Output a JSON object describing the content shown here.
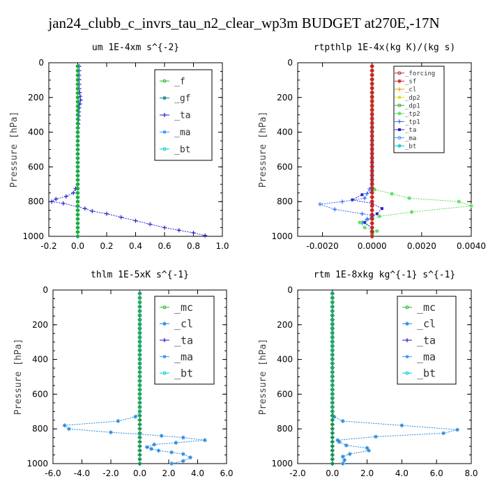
{
  "figure_title": "jan24_clubb_c_invrs_tau_n2_clear_wp3m  BUDGET at270E,-17N",
  "chart_data": [
    {
      "type": "line",
      "title": "um  1E-4xm s^{-2}",
      "xlabel": "",
      "ylabel": "Pressure [hPa]",
      "xlim": [
        -0.2,
        1.0
      ],
      "ylim": [
        1000,
        0
      ],
      "xticks": [
        "-0.2",
        "0.0",
        "0.2",
        "0.4",
        "0.6",
        "0.8",
        "1.0"
      ],
      "yticks": [
        "0",
        "200",
        "400",
        "600",
        "800",
        "1000"
      ],
      "legend_position": "top-right",
      "series": [
        {
          "name": "_f",
          "color": "#22bb22",
          "points": [
            [
              0,
              20
            ],
            [
              0,
              100
            ],
            [
              0,
              200
            ],
            [
              0,
              300
            ],
            [
              0,
              400
            ],
            [
              0,
              500
            ],
            [
              0,
              600
            ],
            [
              0,
              700
            ],
            [
              0,
              800
            ],
            [
              0,
              850
            ],
            [
              0,
              900
            ],
            [
              0,
              950
            ],
            [
              0,
              1000
            ]
          ]
        },
        {
          "name": "_gf",
          "color": "#118888",
          "points": [
            [
              0,
              20
            ],
            [
              0,
              100
            ],
            [
              0,
              200
            ],
            [
              0,
              300
            ],
            [
              0,
              400
            ],
            [
              0,
              500
            ],
            [
              0,
              600
            ],
            [
              0,
              700
            ],
            [
              0,
              800
            ],
            [
              0,
              900
            ],
            [
              0,
              1000
            ]
          ]
        },
        {
          "name": "_ta",
          "color": "#2222cc",
          "points": [
            [
              0.01,
              20
            ],
            [
              0.01,
              150
            ],
            [
              0.02,
              215
            ],
            [
              0.01,
              260
            ],
            [
              0.0,
              400
            ],
            [
              0.0,
              700
            ],
            [
              -0.03,
              750
            ],
            [
              -0.08,
              770
            ],
            [
              -0.15,
              785
            ],
            [
              -0.18,
              800
            ],
            [
              -0.1,
              810
            ],
            [
              0.0,
              830
            ],
            [
              0.05,
              840
            ],
            [
              0.1,
              855
            ],
            [
              0.2,
              870
            ],
            [
              0.3,
              890
            ],
            [
              0.4,
              910
            ],
            [
              0.5,
              930
            ],
            [
              0.6,
              950
            ],
            [
              0.7,
              965
            ],
            [
              0.8,
              980
            ],
            [
              0.88,
              995
            ]
          ]
        },
        {
          "name": "_ma",
          "color": "#3399ff",
          "points": [
            [
              0,
              20
            ],
            [
              0,
              200
            ],
            [
              0,
              400
            ],
            [
              0,
              600
            ],
            [
              0,
              800
            ],
            [
              0,
              1000
            ]
          ]
        },
        {
          "name": "_bt",
          "color": "#00cccc",
          "points": [
            [
              0,
              20
            ],
            [
              0,
              200
            ],
            [
              0,
              400
            ],
            [
              0,
              600
            ],
            [
              0,
              800
            ],
            [
              0,
              1000
            ]
          ]
        }
      ]
    },
    {
      "type": "line",
      "title": "rtpthlp  1E-4x(kg K)/(kg s)",
      "xlabel": "",
      "ylabel": "Pressure [hPa]",
      "xlim": [
        -0.003,
        0.004
      ],
      "ylim": [
        1000,
        0
      ],
      "xticks": [
        "-0.0020",
        "0.0000",
        "0.0020",
        "0.0040"
      ],
      "yticks": [
        "0",
        "200",
        "400",
        "600",
        "800",
        "1000"
      ],
      "legend_position": "top-right",
      "series": [
        {
          "name": "_forcing",
          "color": "#cc2222",
          "points": [
            [
              0,
              20
            ],
            [
              0,
              200
            ],
            [
              0,
              400
            ],
            [
              0,
              600
            ],
            [
              0,
              800
            ],
            [
              0,
              1000
            ]
          ]
        },
        {
          "name": "_sf",
          "color": "#cc2222",
          "points": [
            [
              0,
              20
            ],
            [
              0,
              1000
            ]
          ]
        },
        {
          "name": "_cl",
          "color": "#ff9900",
          "points": [
            [
              0,
              20
            ],
            [
              0,
              1000
            ]
          ]
        },
        {
          "name": "_dp2",
          "color": "#dddd22",
          "points": [
            [
              0,
              20
            ],
            [
              0,
              1000
            ]
          ]
        },
        {
          "name": "_dp1",
          "color": "#33aa33",
          "points": [
            [
              0,
              20
            ],
            [
              0,
              1000
            ]
          ]
        },
        {
          "name": "_tp2",
          "color": "#55dd55",
          "points": [
            [
              0,
              20
            ],
            [
              0,
              700
            ],
            [
              0.0001,
              730
            ],
            [
              0.0015,
              780
            ],
            [
              0.0035,
              800
            ],
            [
              0.004,
              825
            ],
            [
              0.0016,
              860
            ],
            [
              0.0003,
              885
            ],
            [
              0.0,
              900
            ],
            [
              -0.0005,
              920
            ],
            [
              -0.0003,
              950
            ],
            [
              0.0002,
              970
            ],
            [
              0,
              990
            ]
          ]
        },
        {
          "name": "_tp1",
          "color": "#3366ff",
          "points": [
            [
              0,
              20
            ],
            [
              0,
              700
            ],
            [
              -0.0003,
              780
            ],
            [
              -0.0012,
              800
            ],
            [
              -0.0021,
              815
            ],
            [
              -0.0015,
              845
            ],
            [
              -0.0004,
              870
            ],
            [
              0.0,
              880
            ],
            [
              -0.0004,
              920
            ],
            [
              0.0,
              950
            ],
            [
              0,
              990
            ]
          ]
        },
        {
          "name": "_ta",
          "color": "#2222cc",
          "points": [
            [
              0,
              20
            ],
            [
              0,
              740
            ],
            [
              -0.0004,
              760
            ],
            [
              -0.0008,
              790
            ],
            [
              0.0,
              810
            ],
            [
              0.0004,
              840
            ],
            [
              0.0002,
              870
            ],
            [
              0.0,
              890
            ],
            [
              -0.0003,
              920
            ],
            [
              0.0,
              950
            ],
            [
              0,
              990
            ]
          ]
        },
        {
          "name": "_ma",
          "color": "#3399ff",
          "points": [
            [
              0,
              20
            ],
            [
              0,
              1000
            ]
          ]
        },
        {
          "name": "_bt",
          "color": "#00cccc",
          "points": [
            [
              0,
              20
            ],
            [
              0,
              1000
            ]
          ]
        }
      ]
    },
    {
      "type": "line",
      "title": "thlm  1E-5xK s^{-1}",
      "xlabel": "",
      "ylabel": "Pressure [hPa]",
      "xlim": [
        -6.0,
        6.0
      ],
      "ylim": [
        1000,
        0
      ],
      "xticks": [
        "-6.0",
        "-4.0",
        "-2.0",
        "0.0",
        "2.0",
        "4.0",
        "6.0"
      ],
      "yticks": [
        "0",
        "200",
        "400",
        "600",
        "800",
        "1000"
      ],
      "legend_position": "top-right",
      "series": [
        {
          "name": "_mc",
          "color": "#22bb22",
          "points": [
            [
              0,
              20
            ],
            [
              0,
              200
            ],
            [
              0,
              400
            ],
            [
              0,
              600
            ],
            [
              0,
              800
            ],
            [
              0,
              1000
            ]
          ]
        },
        {
          "name": "_cl",
          "color": "#2288dd",
          "points": [
            [
              0,
              20
            ],
            [
              0,
              700
            ],
            [
              -0.3,
              730
            ],
            [
              -1.5,
              755
            ],
            [
              -5.2,
              780
            ],
            [
              -4.9,
              800
            ],
            [
              -2.0,
              820
            ],
            [
              0.0,
              830
            ],
            [
              1.5,
              840
            ],
            [
              3.0,
              850
            ],
            [
              4.5,
              865
            ],
            [
              2.5,
              880
            ],
            [
              1.0,
              890
            ],
            [
              0.5,
              905
            ],
            [
              0.8,
              915
            ],
            [
              1.3,
              925
            ],
            [
              2.2,
              935
            ],
            [
              3.0,
              945
            ],
            [
              3.5,
              965
            ],
            [
              3.0,
              985
            ],
            [
              2.2,
              1000
            ]
          ]
        },
        {
          "name": "_ta",
          "color": "#2222cc",
          "points": [
            [
              0,
              20
            ],
            [
              0,
              1000
            ]
          ]
        },
        {
          "name": "_ma",
          "color": "#3399ff",
          "points": [
            [
              0,
              20
            ],
            [
              0,
              1000
            ]
          ]
        },
        {
          "name": "_bt",
          "color": "#00cccc",
          "points": [
            [
              0,
              20
            ],
            [
              0,
              1000
            ]
          ]
        }
      ]
    },
    {
      "type": "line",
      "title": "rtm  1E-8xkg kg^{-1} s^{-1}",
      "xlabel": "",
      "ylabel": "Pressure [hPa]",
      "xlim": [
        -2.0,
        8.0
      ],
      "ylim": [
        1000,
        0
      ],
      "xticks": [
        "-2.0",
        "0.0",
        "2.0",
        "4.0",
        "6.0",
        "8.0"
      ],
      "yticks": [
        "0",
        "200",
        "400",
        "600",
        "800",
        "1000"
      ],
      "legend_position": "top-right",
      "series": [
        {
          "name": "_mc",
          "color": "#22bb22",
          "points": [
            [
              0,
              20
            ],
            [
              0,
              200
            ],
            [
              0,
              400
            ],
            [
              0,
              600
            ],
            [
              0,
              800
            ],
            [
              0,
              1000
            ]
          ]
        },
        {
          "name": "_cl",
          "color": "#2288dd",
          "points": [
            [
              0,
              20
            ],
            [
              0,
              700
            ],
            [
              0.1,
              730
            ],
            [
              0.6,
              755
            ],
            [
              4.0,
              780
            ],
            [
              7.2,
              805
            ],
            [
              6.4,
              825
            ],
            [
              2.5,
              845
            ],
            [
              0.3,
              865
            ],
            [
              0.4,
              875
            ],
            [
              0.8,
              895
            ],
            [
              2.0,
              910
            ],
            [
              2.1,
              925
            ],
            [
              1.0,
              945
            ],
            [
              0.6,
              960
            ],
            [
              0.7,
              980
            ],
            [
              0.6,
              1000
            ]
          ]
        },
        {
          "name": "_ta",
          "color": "#2222cc",
          "points": [
            [
              0,
              20
            ],
            [
              0,
              1000
            ]
          ]
        },
        {
          "name": "_ma",
          "color": "#3399ff",
          "points": [
            [
              0,
              20
            ],
            [
              0,
              1000
            ]
          ]
        },
        {
          "name": "_bt",
          "color": "#00cccc",
          "points": [
            [
              0,
              20
            ],
            [
              0,
              1000
            ]
          ]
        }
      ]
    }
  ]
}
